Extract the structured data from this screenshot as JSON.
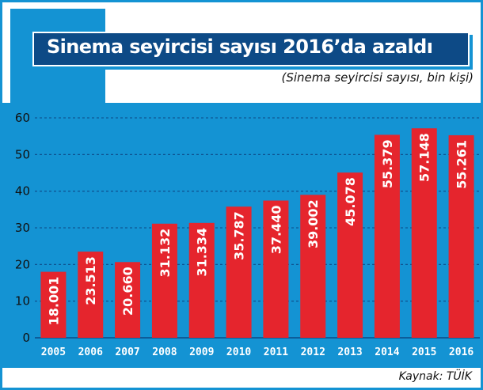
{
  "title": "Sinema seyircisi sayısı 2016’da azaldı",
  "subtitle": "(Sinema seyircisi sayısı, bin kişi)",
  "source": "Kaynak: TÜİK",
  "colors": {
    "frame": "#1493d3",
    "title_bg": "#0d4a86",
    "bar": "#e5252d",
    "grid": "#0d4a86",
    "text": "#111111"
  },
  "chart_data": {
    "type": "bar",
    "title": "Sinema seyircisi sayısı 2016’da azaldı",
    "subtitle": "(Sinema seyircisi sayısı, bin kişi)",
    "xlabel": "",
    "ylabel": "",
    "categories": [
      "2005",
      "2006",
      "2007",
      "2008",
      "2009",
      "2010",
      "2011",
      "2012",
      "2013",
      "2014",
      "2015",
      "2016"
    ],
    "values": [
      18.001,
      23.513,
      20.66,
      31.132,
      31.334,
      35.787,
      37.44,
      39.002,
      45.078,
      55.379,
      57.148,
      55.261
    ],
    "value_labels": [
      "18.001",
      "23.513",
      "20.660",
      "31.132",
      "31.334",
      "35.787",
      "37.440",
      "39.002",
      "45.078",
      "55.379",
      "57.148",
      "55.261"
    ],
    "yticks": [
      "0",
      "10",
      "20",
      "30",
      "40",
      "50",
      "60"
    ],
    "ylim": [
      0,
      60
    ],
    "grid": true,
    "legend": "none"
  }
}
